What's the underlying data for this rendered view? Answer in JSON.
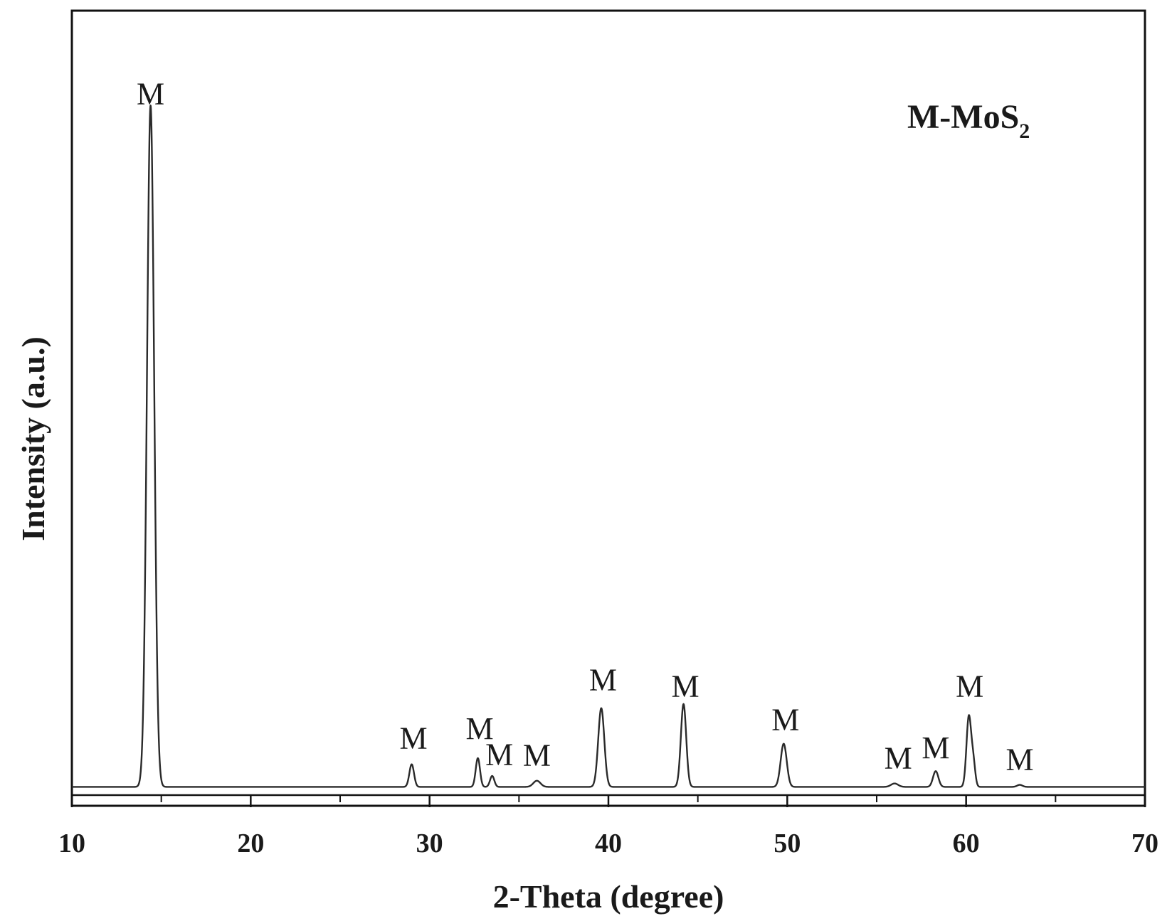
{
  "chart_data": {
    "type": "line",
    "title": "",
    "xlabel": "2-Theta (degree)",
    "ylabel": "Intensity (a.u.)",
    "xlim": [
      10,
      70
    ],
    "ylim": [
      0,
      100
    ],
    "x_ticks": [
      10,
      20,
      30,
      40,
      50,
      60,
      70
    ],
    "x_tick_labels": [
      "10",
      "20",
      "30",
      "40",
      "50",
      "60",
      "70"
    ],
    "x_minor_step": 5,
    "y_ticks": [],
    "grid": false,
    "legend_position": "top-right",
    "legend_main": "M-MoS",
    "legend_sub": "2",
    "baseline": 1.2,
    "series": [
      {
        "peaks": [
          {
            "x": 14.4,
            "y": 99.5,
            "w": 0.2
          },
          {
            "x": 29.0,
            "y": 3.3,
            "w": 0.13
          },
          {
            "x": 32.7,
            "y": 4.2,
            "w": 0.12
          },
          {
            "x": 33.5,
            "y": 1.6,
            "w": 0.12
          },
          {
            "x": 36.0,
            "y": 0.9,
            "w": 0.2
          },
          {
            "x": 39.6,
            "y": 11.5,
            "w": 0.17
          },
          {
            "x": 44.2,
            "y": 12.1,
            "w": 0.15
          },
          {
            "x": 49.8,
            "y": 6.3,
            "w": 0.17
          },
          {
            "x": 56.0,
            "y": 0.5,
            "w": 0.2
          },
          {
            "x": 58.3,
            "y": 2.3,
            "w": 0.15
          },
          {
            "x": 60.15,
            "y": 10.2,
            "w": 0.13
          },
          {
            "x": 60.4,
            "y": 3.5,
            "w": 0.11
          },
          {
            "x": 63.0,
            "y": 0.3,
            "w": 0.15
          }
        ]
      }
    ],
    "annotations": [
      {
        "text": "M",
        "x": 14.4,
        "y": 100.9
      },
      {
        "text": "M",
        "x": 29.1,
        "y": 6.8
      },
      {
        "text": "M",
        "x": 32.8,
        "y": 8.2
      },
      {
        "text": "M",
        "x": 33.9,
        "y": 4.4
      },
      {
        "text": "M",
        "x": 36.0,
        "y": 4.3
      },
      {
        "text": "M",
        "x": 39.7,
        "y": 15.3
      },
      {
        "text": "M",
        "x": 44.3,
        "y": 14.4
      },
      {
        "text": "M",
        "x": 49.9,
        "y": 9.5
      },
      {
        "text": "M",
        "x": 56.2,
        "y": 3.9
      },
      {
        "text": "M",
        "x": 58.3,
        "y": 5.4
      },
      {
        "text": "M",
        "x": 60.2,
        "y": 14.4
      },
      {
        "text": "M",
        "x": 63.0,
        "y": 3.7
      }
    ]
  },
  "colors": {
    "line": "#2a2a2a",
    "axis": "#111111",
    "background": "#ffffff"
  }
}
